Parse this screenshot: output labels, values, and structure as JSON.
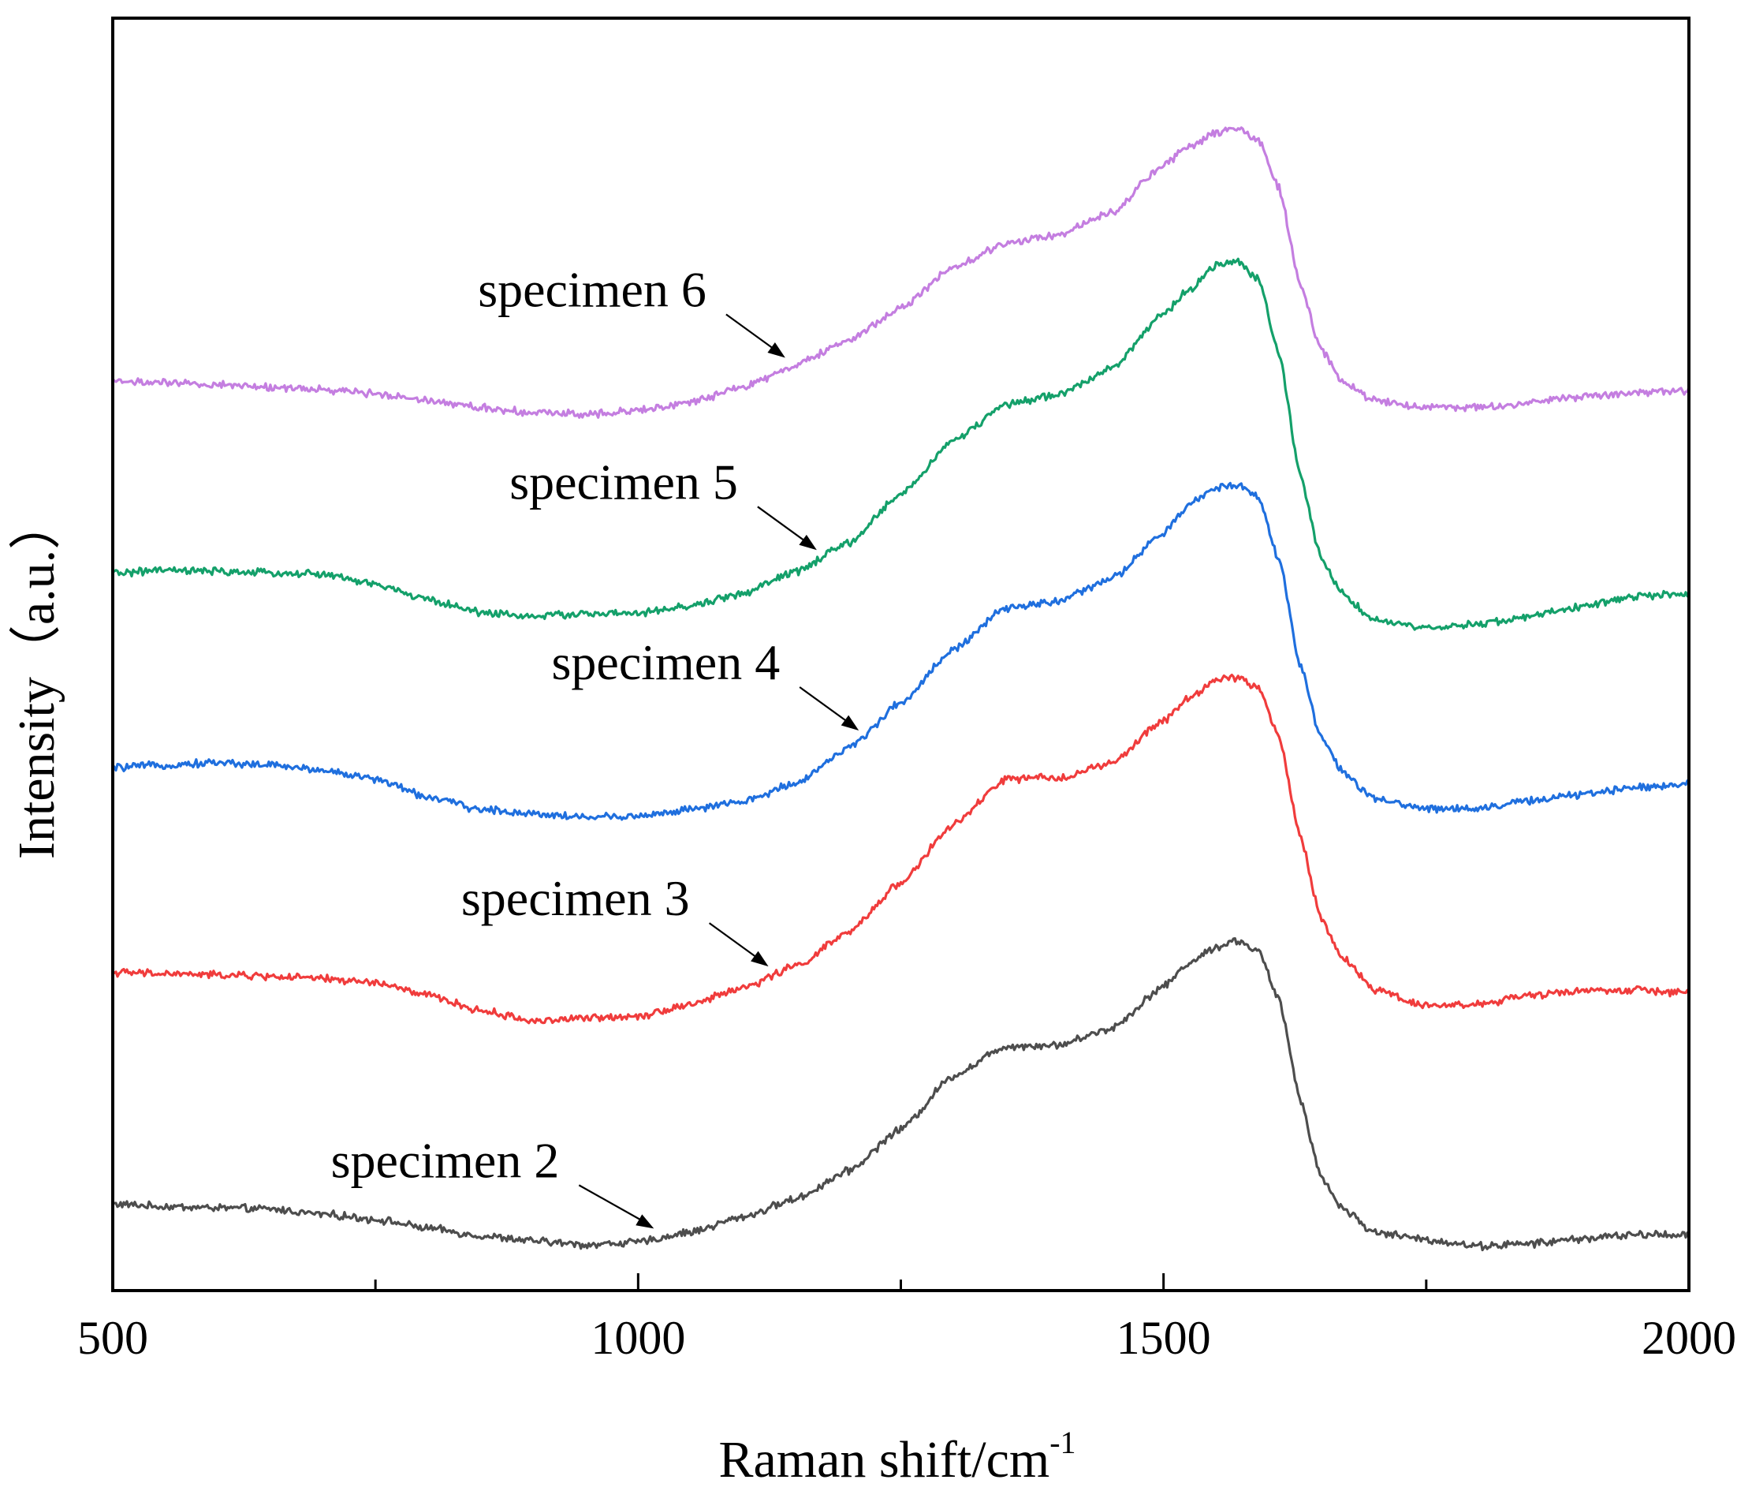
{
  "chart_data": {
    "type": "line",
    "title": "",
    "xlabel": "Raman shift/cm",
    "xlabel_superscript": "-1",
    "ylabel": "Intensity（a.u.）",
    "xlim": [
      500,
      2000
    ],
    "ylim": [
      0,
      100
    ],
    "x_ticks": [
      500,
      1000,
      1500,
      2000
    ],
    "x_minor_ticks": [
      750,
      1250,
      1750
    ],
    "y_ticks_shown": false,
    "grid": false,
    "legend": "inline labels with arrows",
    "x": [
      500,
      550,
      600,
      650,
      700,
      750,
      800,
      850,
      900,
      950,
      1000,
      1050,
      1100,
      1150,
      1200,
      1250,
      1300,
      1350,
      1400,
      1450,
      1500,
      1525,
      1550,
      1570,
      1590,
      1610,
      1630,
      1650,
      1670,
      1700,
      1750,
      1800,
      1850,
      1900,
      1950,
      2000
    ],
    "series": [
      {
        "name": "specimen 2",
        "label": "specimen 2",
        "color": "#4d4d4d",
        "arrow_at_x": 1015,
        "values": [
          6.8,
          6.6,
          6.5,
          6.4,
          6.0,
          5.6,
          4.9,
          4.3,
          3.9,
          3.6,
          3.8,
          4.6,
          5.8,
          7.2,
          9.4,
          12.7,
          16.9,
          19.2,
          19.3,
          20.6,
          23.9,
          25.8,
          27.0,
          27.5,
          26.7,
          22.8,
          15.1,
          8.9,
          6.5,
          4.6,
          4.0,
          3.5,
          3.7,
          4.1,
          4.4,
          4.4
        ]
      },
      {
        "name": "specimen 3",
        "label": "specimen 3",
        "color": "#f03c3c",
        "arrow_at_x": 1124,
        "values": [
          25.0,
          24.9,
          24.8,
          24.7,
          24.5,
          24.2,
          23.2,
          22.0,
          21.2,
          21.4,
          21.6,
          22.5,
          23.8,
          25.5,
          28.1,
          32.1,
          36.6,
          40.2,
          40.3,
          41.4,
          44.8,
          46.6,
          48.0,
          48.2,
          47.4,
          43.5,
          35.7,
          29.2,
          26.2,
          23.7,
          22.4,
          22.5,
          23.2,
          23.6,
          23.6,
          23.4
        ]
      },
      {
        "name": "specimen 4",
        "label": "specimen 4",
        "color": "#1f6fde",
        "arrow_at_x": 1210,
        "values": [
          41.1,
          41.3,
          41.5,
          41.3,
          40.9,
          40.2,
          38.8,
          37.8,
          37.5,
          37.2,
          37.3,
          37.8,
          38.4,
          39.9,
          42.6,
          46.2,
          50.4,
          53.6,
          54.2,
          55.9,
          59.5,
          61.8,
          63.1,
          63.4,
          62.4,
          57.4,
          49.2,
          43.5,
          40.8,
          38.6,
          37.9,
          37.9,
          38.5,
          39.0,
          39.6,
          39.8
        ]
      },
      {
        "name": "specimen 5",
        "label": "specimen 5",
        "color": "#14a06a",
        "arrow_at_x": 1170,
        "values": [
          56.4,
          56.6,
          56.5,
          56.4,
          56.3,
          55.5,
          54.3,
          53.3,
          53.0,
          53.2,
          53.2,
          53.8,
          54.8,
          56.5,
          58.7,
          62.6,
          66.8,
          69.6,
          70.4,
          72.5,
          76.7,
          78.7,
          80.6,
          80.8,
          79.6,
          73.6,
          64.0,
          57.6,
          54.8,
          52.7,
          52.0,
          52.4,
          53.0,
          53.8,
          54.6,
          54.7
        ]
      },
      {
        "name": "specimen 6",
        "label": "specimen 6",
        "color": "#c47ee0",
        "arrow_at_x": 1140,
        "values": [
          71.5,
          71.3,
          71.2,
          71.0,
          70.8,
          70.5,
          70.0,
          69.4,
          69.0,
          68.9,
          69.2,
          69.8,
          71.0,
          72.7,
          74.7,
          77.2,
          80.4,
          82.3,
          83.0,
          84.7,
          88.5,
          89.9,
          91.0,
          91.3,
          90.4,
          86.6,
          79.1,
          73.9,
          71.4,
          70.0,
          69.4,
          69.4,
          69.8,
          70.3,
          70.6,
          70.7
        ]
      }
    ]
  }
}
